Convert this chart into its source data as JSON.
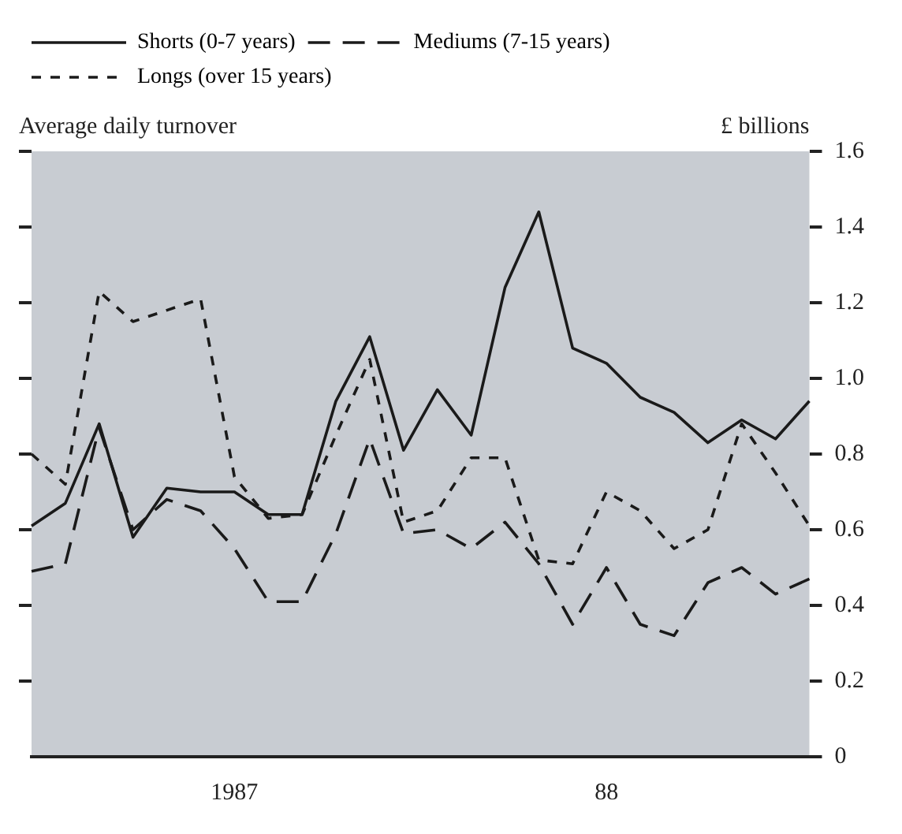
{
  "chart_data": {
    "type": "line",
    "categories": [
      null,
      null,
      null,
      null,
      null,
      null,
      "1987",
      null,
      null,
      null,
      null,
      null,
      null,
      null,
      null,
      null,
      null,
      "88",
      null,
      null,
      null,
      null,
      null,
      null
    ],
    "series": [
      {
        "name": "Shorts (0-7 years)",
        "color": "#1a1a1a",
        "line_style": "solid",
        "values": [
          0.61,
          0.67,
          0.88,
          0.58,
          0.71,
          0.7,
          0.7,
          0.64,
          0.64,
          0.94,
          1.11,
          0.81,
          0.97,
          0.85,
          1.24,
          1.44,
          1.08,
          1.04,
          0.95,
          0.91,
          0.83,
          0.89,
          0.84,
          0.94
        ]
      },
      {
        "name": "Mediums (7-15 years)",
        "color": "#1a1a1a",
        "line_style": "dashed",
        "values": [
          0.49,
          0.51,
          0.87,
          0.6,
          0.68,
          0.65,
          0.55,
          0.41,
          0.41,
          0.59,
          0.84,
          0.59,
          0.6,
          0.55,
          0.62,
          0.51,
          0.35,
          0.5,
          0.35,
          0.32,
          0.46,
          0.5,
          0.43,
          0.47
        ]
      },
      {
        "name": "Longs (over 15 years)",
        "color": "#1a1a1a",
        "line_style": "dotted",
        "values": [
          0.8,
          0.72,
          1.23,
          1.15,
          1.18,
          1.21,
          0.74,
          0.63,
          0.64,
          0.85,
          1.05,
          0.62,
          0.65,
          0.79,
          0.79,
          0.52,
          0.51,
          0.7,
          0.65,
          0.55,
          0.6,
          0.88,
          0.75,
          0.61
        ]
      }
    ],
    "ylabel": "Average daily turnover",
    "annotations": [
      "£ billions"
    ],
    "ylim": [
      0,
      1.6
    ],
    "yticks": [
      0,
      0.2,
      0.4,
      0.6,
      0.8,
      {
        "value": 1,
        "label": "1.0"
      },
      1.2,
      1.4,
      1.6
    ],
    "grid": false,
    "legend": "top left",
    "marker": "none"
  }
}
